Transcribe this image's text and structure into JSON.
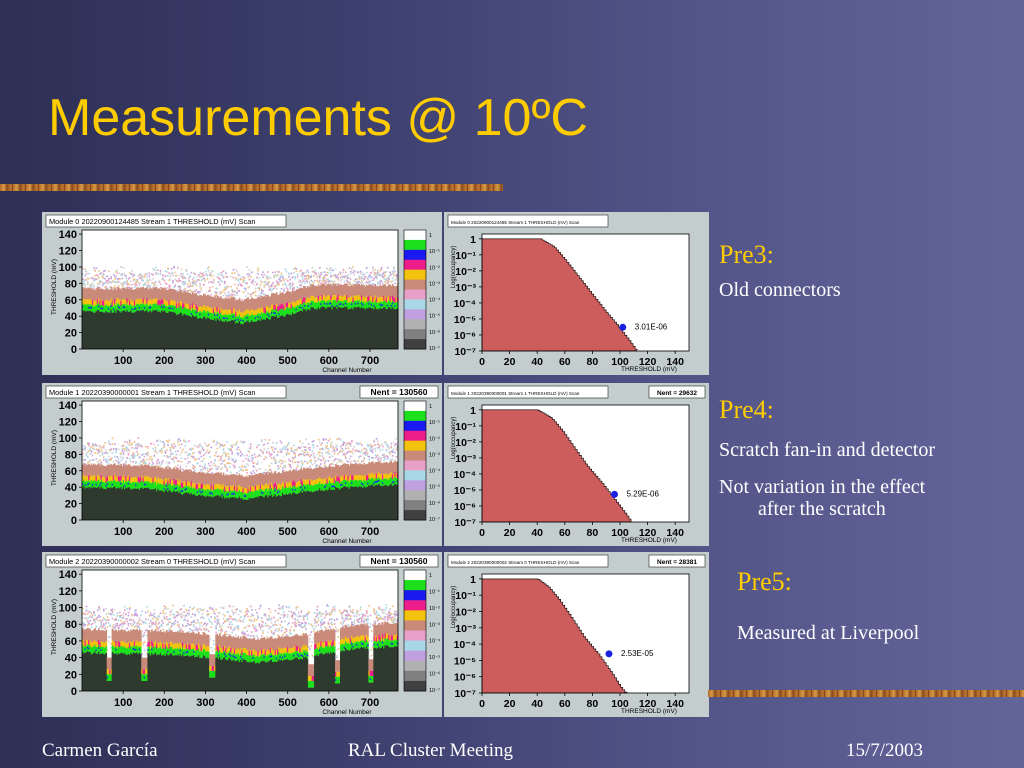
{
  "slide": {
    "title": "Measurements @ 10ºC",
    "colors": {
      "title": "#ffcc00",
      "background_left": "#2e2f55",
      "background_right": "#63659a",
      "plot_frame": "#c3cdcd",
      "plot_fill": "#cd5c5c"
    }
  },
  "labels": [
    {
      "title": "Pre3:",
      "lines": [
        "Old connectors"
      ]
    },
    {
      "title": "Pre4:",
      "lines": [
        "Scratch fan-in and detector",
        "Not variation in the effect",
        "after the scratch"
      ]
    },
    {
      "title": "Pre5:",
      "lines": [
        "Measured at Liverpool"
      ]
    }
  ],
  "footer": {
    "author": "Carmen García",
    "event": "RAL Cluster Meeting",
    "date": "15/7/2003"
  },
  "chart_data": [
    {
      "type": "heatmap",
      "title": "Module 0 20220900124485 Stream 1 THRESHOLD (mV) Scan",
      "stats": "",
      "xlabel": "Channel Number",
      "ylabel": "THRESHOLD (mV)",
      "xticks": [
        100,
        200,
        300,
        400,
        500,
        600,
        700
      ],
      "yticks": [
        0,
        20,
        40,
        60,
        80,
        100,
        120,
        140
      ],
      "xlim": [
        0,
        768
      ],
      "ylim": [
        0,
        145
      ],
      "palette_scale": [
        "1",
        "10⁻¹",
        "10⁻²",
        "10⁻³",
        "10⁻⁴",
        "10⁻⁵",
        "10⁻⁶",
        "10⁻⁷"
      ],
      "band": {
        "floor": [
          [
            0,
            52
          ],
          [
            200,
            52
          ],
          [
            290,
            44
          ],
          [
            390,
            38
          ],
          [
            500,
            48
          ],
          [
            560,
            56
          ],
          [
            768,
            56
          ]
        ],
        "upper": 95
      },
      "dips": []
    },
    {
      "type": "area",
      "title": "Module 0 20220900124485 Stream 1 THRESHOLD (mV) Scan",
      "stats": "",
      "xlabel": "THRESHOLD (mV)",
      "ylabel": "Log(occupancy)",
      "log_y": true,
      "xticks": [
        0,
        20,
        40,
        60,
        80,
        100,
        120,
        140
      ],
      "ytick_labels": [
        "1",
        "10⁻¹",
        "10⁻²",
        "10⁻³",
        "10⁻⁴",
        "10⁻⁵",
        "10⁻⁶",
        "10⁻⁷"
      ],
      "xlim": [
        0,
        150
      ],
      "ylim_exp": [
        -7,
        0.3
      ],
      "curve": [
        [
          0,
          0
        ],
        [
          42,
          0
        ],
        [
          52,
          -0.5
        ],
        [
          60,
          -1.3
        ],
        [
          70,
          -2.4
        ],
        [
          80,
          -3.5
        ],
        [
          90,
          -4.6
        ],
        [
          98,
          -5.4
        ],
        [
          106,
          -6.3
        ],
        [
          112,
          -7
        ]
      ],
      "marker": {
        "x": 102,
        "y": 3.01e-06,
        "label": "3.01E-06"
      }
    },
    {
      "type": "heatmap",
      "title": "Module 1 20220390000001 Stream 1 THRESHOLD (mV) Scan",
      "stats": "Nent = 130560",
      "xlabel": "Channel Number",
      "ylabel": "THRESHOLD (mV)",
      "xticks": [
        100,
        200,
        300,
        400,
        500,
        600,
        700
      ],
      "yticks": [
        0,
        20,
        40,
        60,
        80,
        100,
        120,
        140
      ],
      "xlim": [
        0,
        768
      ],
      "ylim": [
        0,
        145
      ],
      "palette_scale": [
        "1",
        "10⁻¹",
        "10⁻²",
        "10⁻³",
        "10⁻⁴",
        "10⁻⁵",
        "10⁻⁶",
        "10⁻⁷"
      ],
      "band": {
        "floor": [
          [
            0,
            46
          ],
          [
            160,
            44
          ],
          [
            290,
            36
          ],
          [
            400,
            32
          ],
          [
            500,
            38
          ],
          [
            600,
            44
          ],
          [
            768,
            50
          ]
        ],
        "upper": 95
      },
      "dips": []
    },
    {
      "type": "area",
      "title": "Module 1 20220390000001 Stream 1 THRESHOLD (mV) Scan",
      "stats": "Nent = 29632",
      "xlabel": "THRESHOLD (mV)",
      "ylabel": "Log(occupancy)",
      "log_y": true,
      "xticks": [
        0,
        20,
        40,
        60,
        80,
        100,
        120,
        140
      ],
      "ytick_labels": [
        "1",
        "10⁻¹",
        "10⁻²",
        "10⁻³",
        "10⁻⁴",
        "10⁻⁵",
        "10⁻⁶",
        "10⁻⁷"
      ],
      "xlim": [
        0,
        150
      ],
      "ylim_exp": [
        -7,
        0.3
      ],
      "curve": [
        [
          0,
          0
        ],
        [
          40,
          0
        ],
        [
          50,
          -0.5
        ],
        [
          58,
          -1.3
        ],
        [
          66,
          -2.3
        ],
        [
          76,
          -3.5
        ],
        [
          86,
          -4.5
        ],
        [
          96,
          -5.6
        ],
        [
          104,
          -6.5
        ],
        [
          108,
          -7
        ]
      ],
      "marker": {
        "x": 96,
        "y": 5.29e-06,
        "label": "5.29E-06"
      }
    },
    {
      "type": "heatmap",
      "title": "Module 2 20220390000002 Stream 0 THRESHOLD (mV) Scan",
      "stats": "Nent = 130560",
      "xlabel": "Channel Number",
      "ylabel": "THRESHOLD (mV)",
      "xticks": [
        100,
        200,
        300,
        400,
        500,
        600,
        700
      ],
      "yticks": [
        0,
        20,
        40,
        60,
        80,
        100,
        120,
        140
      ],
      "xlim": [
        0,
        768
      ],
      "ylim": [
        0,
        145
      ],
      "palette_scale": [
        "1",
        "10⁻¹",
        "10⁻²",
        "10⁻³",
        "10⁻⁴",
        "10⁻⁵",
        "10⁻⁶",
        "10⁻⁷"
      ],
      "band": {
        "floor": [
          [
            0,
            52
          ],
          [
            200,
            50
          ],
          [
            320,
            46
          ],
          [
            430,
            40
          ],
          [
            540,
            46
          ],
          [
            640,
            56
          ],
          [
            768,
            60
          ]
        ],
        "upper": 98
      },
      "dips": [
        [
          65,
          18
        ],
        [
          150,
          18
        ],
        [
          315,
          22
        ],
        [
          555,
          10
        ],
        [
          620,
          15
        ],
        [
          700,
          16
        ]
      ]
    },
    {
      "type": "area",
      "title": "Module 2 20220390000002 Stream 0 THRESHOLD (mV) Scan",
      "stats": "Nent = 28381",
      "xlabel": "THRESHOLD (mV)",
      "ylabel": "Log(occupancy)",
      "log_y": true,
      "xticks": [
        0,
        20,
        40,
        60,
        80,
        100,
        120,
        140
      ],
      "ytick_labels": [
        "1",
        "10⁻¹",
        "10⁻²",
        "10⁻³",
        "10⁻⁴",
        "10⁻⁵",
        "10⁻⁶",
        "10⁻⁷"
      ],
      "xlim": [
        0,
        150
      ],
      "ylim_exp": [
        -7,
        0.3
      ],
      "curve": [
        [
          0,
          0
        ],
        [
          40,
          0
        ],
        [
          48,
          -0.5
        ],
        [
          56,
          -1.3
        ],
        [
          64,
          -2.3
        ],
        [
          74,
          -3.6
        ],
        [
          84,
          -4.6
        ],
        [
          94,
          -5.8
        ],
        [
          100,
          -6.6
        ],
        [
          104,
          -7
        ]
      ],
      "marker": {
        "x": 92,
        "y": 2.53e-05,
        "label": "2.53E-05"
      }
    }
  ]
}
